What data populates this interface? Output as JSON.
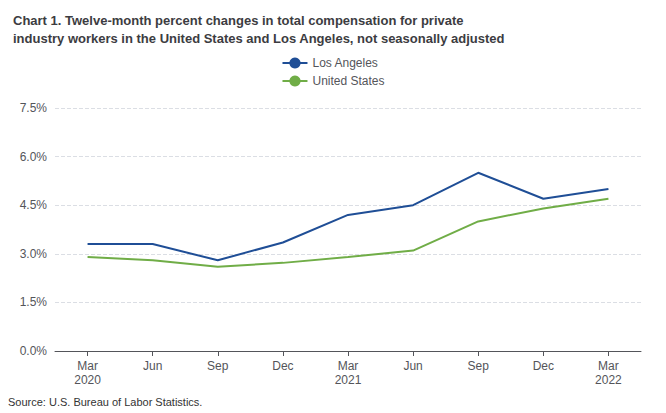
{
  "chart_data": {
    "type": "line",
    "title": "Chart 1. Twelve-month percent changes in total compensation for private\nindustry workers in the United States and Los Angeles, not seasonally adjusted",
    "source": "Source: U.S. Bureau of Labor Statistics.",
    "categories": [
      "Mar\n2020",
      "Jun",
      "Sep",
      "Dec",
      "Mar\n2021",
      "Jun",
      "Sep",
      "Dec",
      "Mar\n2022"
    ],
    "series": [
      {
        "name": "Los Angeles",
        "color": "#1f4e96",
        "values": [
          3.3,
          3.3,
          2.8,
          3.35,
          4.2,
          4.5,
          5.5,
          4.7,
          5.0
        ]
      },
      {
        "name": "United States",
        "color": "#70ad47",
        "values": [
          2.9,
          2.8,
          2.6,
          2.72,
          2.9,
          3.1,
          4.0,
          4.4,
          4.7
        ]
      }
    ],
    "ylim": [
      0.0,
      7.5
    ],
    "yticks": [
      {
        "value": 0.0,
        "label": "0.0%"
      },
      {
        "value": 1.5,
        "label": "1.5%"
      },
      {
        "value": 3.0,
        "label": "3.0%"
      },
      {
        "value": 4.5,
        "label": "4.5%"
      },
      {
        "value": 6.0,
        "label": "6.0%"
      },
      {
        "value": 7.5,
        "label": "7.5%"
      }
    ],
    "grid": true,
    "legend": "top"
  }
}
